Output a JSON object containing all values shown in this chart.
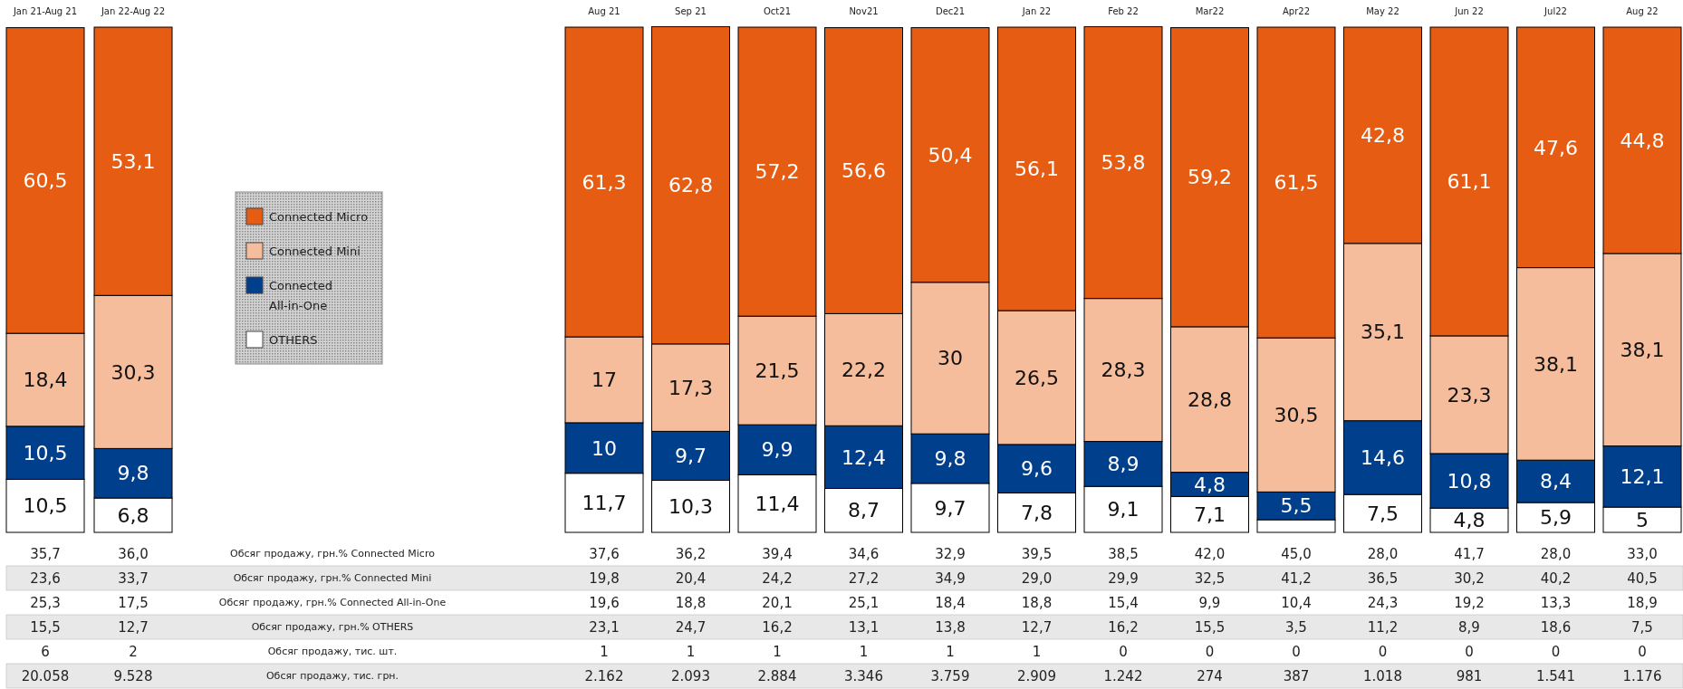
{
  "chart_data": [
    {
      "type": "bar",
      "stacked": true,
      "legend": "right",
      "ylim": [
        0,
        100
      ],
      "categories": [
        "Jan 21-Aug 21",
        "Jan 22-Aug 22"
      ],
      "series": [
        {
          "name": "OTHERS",
          "color": "#ffffff",
          "values": [
            10.5,
            6.8
          ],
          "value_labels": [
            "10,5",
            "6,8"
          ]
        },
        {
          "name": "Connected All-in-One",
          "color": "#003f8c",
          "values": [
            10.5,
            9.8
          ],
          "value_labels": [
            "10,5",
            "9,8"
          ]
        },
        {
          "name": "Connected Mini",
          "color": "#f6bd9c",
          "values": [
            18.4,
            30.3
          ],
          "value_labels": [
            "18,4",
            "30,3"
          ]
        },
        {
          "name": "Connected Micro",
          "color": "#e65c12",
          "values": [
            60.5,
            53.1
          ],
          "value_labels": [
            "60,5",
            "53,1"
          ]
        }
      ]
    },
    {
      "type": "bar",
      "stacked": true,
      "ylim": [
        0,
        100
      ],
      "categories": [
        "Aug 21",
        "Sep 21",
        "Oct21",
        "Nov21",
        "Dec21",
        "Jan 22",
        "Feb 22",
        "Mar22",
        "Apr22",
        "May 22",
        "Jun 22",
        "Jul22",
        "Aug 22"
      ],
      "series": [
        {
          "color": "#ffffff",
          "values": [
            11.7,
            10.3,
            11.4,
            8.7,
            9.7,
            7.8,
            9.1,
            7.1,
            2.5,
            7.5,
            4.8,
            5.9,
            5
          ],
          "value_labels": [
            "11,7",
            "10,3",
            "11,4",
            "8,7",
            "9,7",
            "7,8",
            "9,1",
            "7,1",
            null,
            "7,5",
            "4,8",
            "5,9",
            "5"
          ]
        },
        {
          "color": "#003f8c",
          "values": [
            10,
            9.7,
            9.9,
            12.4,
            9.8,
            9.6,
            8.9,
            4.8,
            5.5,
            14.6,
            10.8,
            8.4,
            12.1
          ],
          "value_labels": [
            "10",
            "9,7",
            "9,9",
            "12,4",
            "9,8",
            "9,6",
            "8,9",
            "4,8",
            "5,5",
            "14,6",
            "10,8",
            "8,4",
            "12,1"
          ]
        },
        {
          "color": "#f6bd9c",
          "values": [
            17,
            17.3,
            21.5,
            22.2,
            30,
            26.5,
            28.3,
            28.8,
            30.5,
            35.1,
            23.3,
            38.1,
            38.1
          ],
          "value_labels": [
            "17",
            "17,3",
            "21,5",
            "22,2",
            "30",
            "26,5",
            "28,3",
            "28,8",
            "30,5",
            "35,1",
            "23,3",
            "38,1",
            "38,1"
          ]
        },
        {
          "color": "#e65c12",
          "values": [
            61.3,
            62.8,
            57.2,
            56.6,
            50.4,
            56.1,
            53.8,
            59.2,
            61.5,
            42.8,
            61.1,
            47.6,
            44.8
          ],
          "value_labels": [
            "61,3",
            "62,8",
            "57,2",
            "56,6",
            "50,4",
            "56,1",
            "53,8",
            "59,2",
            "61,5",
            "42,8",
            "61,1",
            "47,6",
            "44,8"
          ]
        }
      ]
    },
    {
      "type": "other",
      "title": "Обсяг продажу, грн.% Connected Micro",
      "annotations": [
        "35,7",
        "36,0",
        "37,6",
        "36,2",
        "39,4",
        "34,6",
        "32,9",
        "39,5",
        "38,5",
        "42,0",
        "45,0",
        "28,0",
        "41,7",
        "28,0",
        "33,0"
      ]
    },
    {
      "type": "other",
      "title": "Обсяг продажу, грн.% Connected Mini",
      "annotations": [
        "23,6",
        "33,7",
        "19,8",
        "20,4",
        "24,2",
        "27,2",
        "34,9",
        "29,0",
        "29,9",
        "32,5",
        "41,2",
        "36,5",
        "30,2",
        "40,2",
        "40,5"
      ]
    },
    {
      "type": "other",
      "title": "Обсяг продажу, грн.% Connected All-in-One",
      "annotations": [
        "25,3",
        "17,5",
        "19,6",
        "18,8",
        "20,1",
        "25,1",
        "18,4",
        "18,8",
        "15,4",
        "9,9",
        "10,4",
        "24,3",
        "19,2",
        "13,3",
        "18,9"
      ]
    },
    {
      "type": "other",
      "title": "Обсяг продажу, грн.% OTHERS",
      "annotations": [
        "15,5",
        "12,7",
        "23,1",
        "24,7",
        "16,2",
        "13,1",
        "13,8",
        "12,7",
        "16,2",
        "15,5",
        "3,5",
        "11,2",
        "8,9",
        "18,6",
        "7,5"
      ]
    },
    {
      "type": "other",
      "title": "Обсяг продажу, тис. шт.",
      "annotations": [
        "6",
        "2",
        "1",
        "1",
        "1",
        "1",
        "1",
        "1",
        "0",
        "0",
        "0",
        "0",
        "0",
        "0",
        "0"
      ]
    },
    {
      "type": "other",
      "title": "Обсяг продажу, тис. грн.",
      "annotations": [
        "20.058",
        "9.528",
        "2.162",
        "2.093",
        "2.884",
        "3.346",
        "3.759",
        "2.909",
        "1.242",
        "274",
        "387",
        "1.018",
        "981",
        "1.541",
        "1.176"
      ]
    }
  ]
}
